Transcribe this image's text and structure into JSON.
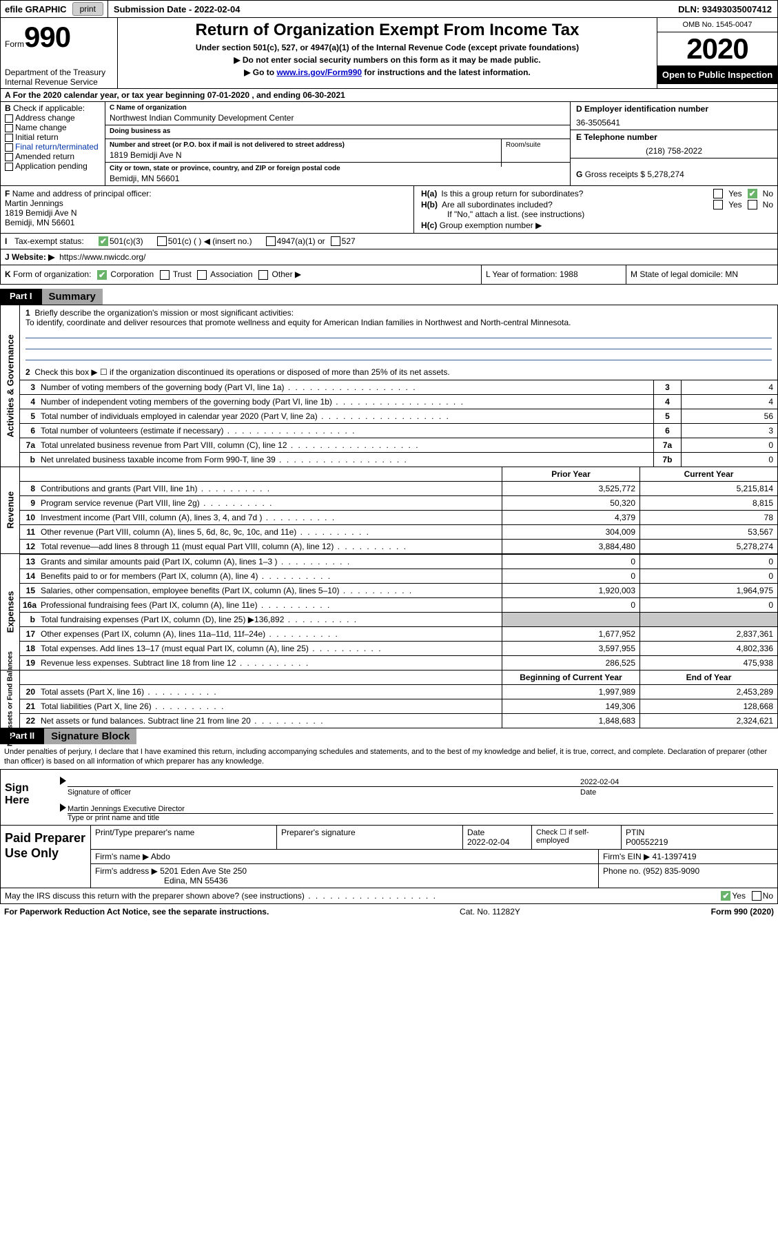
{
  "colors": {
    "black": "#000000",
    "gray_header": "#a5a5a5",
    "btn_gray": "#d0d0d0",
    "rule_blue": "#3b5998",
    "shade_gray": "#c8c8c8",
    "chk_green": "#69b36b"
  },
  "topbar": {
    "efile": "efile GRAPHIC",
    "print": "print",
    "submission": "Submission Date - 2022-02-04",
    "dln": "DLN: 93493035007412"
  },
  "header": {
    "form_word": "Form",
    "form_num": "990",
    "title": "Return of Organization Exempt From Income Tax",
    "sub1": "Under section 501(c), 527, or 4947(a)(1) of the Internal Revenue Code (except private foundations)",
    "sub2": "▶ Do not enter social security numbers on this form as it may be made public.",
    "sub3_pre": "▶ Go to ",
    "sub3_link": "www.irs.gov/Form990",
    "sub3_post": " for instructions and the latest information.",
    "omb": "OMB No. 1545-0047",
    "year": "2020",
    "open": "Open to Public Inspection",
    "dept1": "Department of the Treasury",
    "dept2": "Internal Revenue Service",
    "period_a": "A",
    "period": "For the 2020 calendar year, or tax year beginning 07-01-2020   , and ending 06-30-2021"
  },
  "secB": {
    "label": "B",
    "intro": "Check if applicable:",
    "addr": "Address change",
    "name": "Name change",
    "init": "Initial return",
    "final": "Final return/terminated",
    "amend": "Amended return",
    "app": "Application pending"
  },
  "secC": {
    "c_lbl": "C Name of organization",
    "org_name": "Northwest Indian Community Development Center",
    "dba_lbl": "Doing business as",
    "dba": "",
    "street_lbl": "Number and street (or P.O. box if mail is not delivered to street address)",
    "room_lbl": "Room/suite",
    "street": "1819 Bemidji Ave N",
    "city_lbl": "City or town, state or province, country, and ZIP or foreign postal code",
    "city": "Bemidji, MN  56601"
  },
  "secD": {
    "d_lbl": "D Employer identification number",
    "ein": "36-3505641",
    "e_lbl": "E Telephone number",
    "phone": "(218) 758-2022",
    "g_lbl": "G",
    "g_txt": "Gross receipts $",
    "g_val": "5,278,274"
  },
  "secF": {
    "f_lbl": "F",
    "f_txt": "Name and address of principal officer:",
    "name": "Martin Jennings",
    "addr1": "1819 Bemidji Ave N",
    "addr2": "Bemidji, MN  56601"
  },
  "secH": {
    "ha_lbl": "H(a)",
    "ha_txt": "Is this a group return for subordinates?",
    "hb_lbl": "H(b)",
    "hb_txt": "Are all subordinates included?",
    "hb_note": "If \"No,\" attach a list. (see instructions)",
    "hc_lbl": "H(c)",
    "hc_txt": "Group exemption number ▶",
    "yes": "Yes",
    "no": "No"
  },
  "secI": {
    "i_lbl": "I",
    "txt": "Tax-exempt status:",
    "o1": "501(c)(3)",
    "o2": "501(c) (  ) ◀ (insert no.)",
    "o3": "4947(a)(1) or",
    "o4": "527"
  },
  "secJ": {
    "j_lbl": "J",
    "txt": "Website: ▶",
    "url": "https://www.nwicdc.org/"
  },
  "secK": {
    "k_lbl": "K",
    "txt": "Form of organization:",
    "corp": "Corporation",
    "trust": "Trust",
    "assoc": "Association",
    "other": "Other ▶",
    "l_txt": "L Year of formation: 1988",
    "m_txt": "M State of legal domicile: MN"
  },
  "part1": {
    "tag": "Part I",
    "title": "Summary",
    "line1_num": "1",
    "line1": "Briefly describe the organization's mission or most significant activities:",
    "mission": "To identify, coordinate and deliver resources that promote wellness and equity for American Indian families in Northwest and North-central Minnesota.",
    "line2_num": "2",
    "line2": "Check this box ▶ ☐ if the organization discontinued its operations or disposed of more than 25% of its net assets.",
    "rows": [
      {
        "n": "3",
        "t": "Number of voting members of the governing body (Part VI, line 1a)",
        "box": "3",
        "v": "4"
      },
      {
        "n": "4",
        "t": "Number of independent voting members of the governing body (Part VI, line 1b)",
        "box": "4",
        "v": "4"
      },
      {
        "n": "5",
        "t": "Total number of individuals employed in calendar year 2020 (Part V, line 2a)",
        "box": "5",
        "v": "56"
      },
      {
        "n": "6",
        "t": "Total number of volunteers (estimate if necessary)",
        "box": "6",
        "v": "3"
      },
      {
        "n": "7a",
        "t": "Total unrelated business revenue from Part VIII, column (C), line 12",
        "box": "7a",
        "v": "0"
      },
      {
        "n": "b",
        "t": "Net unrelated business taxable income from Form 990-T, line 39",
        "box": "7b",
        "v": "0"
      }
    ],
    "side_gov": "Activities & Governance"
  },
  "fin_hdr": {
    "prior": "Prior Year",
    "current": "Current Year",
    "boy": "Beginning of Current Year",
    "eoy": "End of Year"
  },
  "revenue": {
    "side": "Revenue",
    "rows": [
      {
        "n": "8",
        "t": "Contributions and grants (Part VIII, line 1h)",
        "py": "3,525,772",
        "cy": "5,215,814"
      },
      {
        "n": "9",
        "t": "Program service revenue (Part VIII, line 2g)",
        "py": "50,320",
        "cy": "8,815"
      },
      {
        "n": "10",
        "t": "Investment income (Part VIII, column (A), lines 3, 4, and 7d )",
        "py": "4,379",
        "cy": "78"
      },
      {
        "n": "11",
        "t": "Other revenue (Part VIII, column (A), lines 5, 6d, 8c, 9c, 10c, and 11e)",
        "py": "304,009",
        "cy": "53,567"
      },
      {
        "n": "12",
        "t": "Total revenue—add lines 8 through 11 (must equal Part VIII, column (A), line 12)",
        "py": "3,884,480",
        "cy": "5,278,274"
      }
    ]
  },
  "expenses": {
    "side": "Expenses",
    "rows": [
      {
        "n": "13",
        "t": "Grants and similar amounts paid (Part IX, column (A), lines 1–3 )",
        "py": "0",
        "cy": "0"
      },
      {
        "n": "14",
        "t": "Benefits paid to or for members (Part IX, column (A), line 4)",
        "py": "0",
        "cy": "0"
      },
      {
        "n": "15",
        "t": "Salaries, other compensation, employee benefits (Part IX, column (A), lines 5–10)",
        "py": "1,920,003",
        "cy": "1,964,975"
      },
      {
        "n": "16a",
        "t": "Professional fundraising fees (Part IX, column (A), line 11e)",
        "py": "0",
        "cy": "0"
      },
      {
        "n": "b",
        "t": "Total fundraising expenses (Part IX, column (D), line 25) ▶136,892",
        "py": "",
        "cy": "",
        "shade": true
      },
      {
        "n": "17",
        "t": "Other expenses (Part IX, column (A), lines 11a–11d, 11f–24e)",
        "py": "1,677,952",
        "cy": "2,837,361"
      },
      {
        "n": "18",
        "t": "Total expenses. Add lines 13–17 (must equal Part IX, column (A), line 25)",
        "py": "3,597,955",
        "cy": "4,802,336"
      },
      {
        "n": "19",
        "t": "Revenue less expenses. Subtract line 18 from line 12",
        "py": "286,525",
        "cy": "475,938"
      }
    ]
  },
  "netassets": {
    "side": "Net Assets or Fund Balances",
    "rows": [
      {
        "n": "20",
        "t": "Total assets (Part X, line 16)",
        "py": "1,997,989",
        "cy": "2,453,289"
      },
      {
        "n": "21",
        "t": "Total liabilities (Part X, line 26)",
        "py": "149,306",
        "cy": "128,668"
      },
      {
        "n": "22",
        "t": "Net assets or fund balances. Subtract line 21 from line 20",
        "py": "1,848,683",
        "cy": "2,324,621"
      }
    ]
  },
  "part2": {
    "tag": "Part II",
    "title": "Signature Block",
    "declare": "Under penalties of perjury, I declare that I have examined this return, including accompanying schedules and statements, and to the best of my knowledge and belief, it is true, correct, and complete. Declaration of preparer (other than officer) is based on all information of which preparer has any knowledge."
  },
  "sign": {
    "label": "Sign Here",
    "sig_of": "Signature of officer",
    "date": "Date",
    "date_v": "2022-02-04",
    "name": "Martin Jennings  Executive Director",
    "type": "Type or print name and title"
  },
  "paid": {
    "label": "Paid Preparer Use Only",
    "h1": "Print/Type preparer's name",
    "h2": "Preparer's signature",
    "h3": "Date",
    "h3v": "2022-02-04",
    "h4": "Check ☐ if self-employed",
    "h5": "PTIN",
    "h5v": "P00552219",
    "firm_name_lbl": "Firm's name     ▶",
    "firm_name": "Abdo",
    "firm_ein_lbl": "Firm's EIN ▶",
    "firm_ein": "41-1397419",
    "firm_addr_lbl": "Firm's address ▶",
    "firm_addr1": "5201 Eden Ave Ste 250",
    "firm_addr2": "Edina, MN  55436",
    "phone_lbl": "Phone no.",
    "phone": "(952) 835-9090"
  },
  "irs_discuss": {
    "txt": "May the IRS discuss this return with the preparer shown above? (see instructions)",
    "yes": "Yes",
    "no": "No"
  },
  "footer": {
    "left": "For Paperwork Reduction Act Notice, see the separate instructions.",
    "mid": "Cat. No. 11282Y",
    "right": "Form 990 (2020)"
  }
}
